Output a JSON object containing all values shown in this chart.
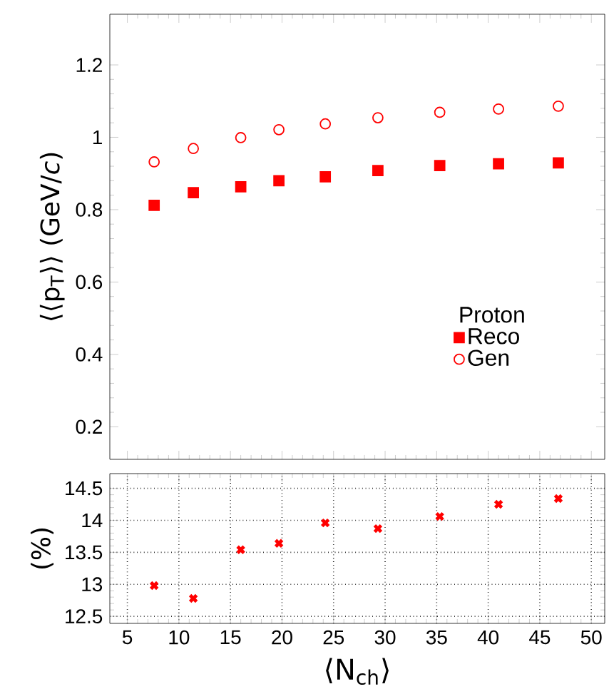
{
  "chart_data": [
    {
      "type": "scatter",
      "ylabel": "⟨⟨p$_{T}$⟩⟩ (GeV/*c*)",
      "legend_title": "Proton",
      "legend": "bottom right",
      "tick_labels": "y",
      "x": [
        7.6,
        11.4,
        16.0,
        19.7,
        24.2,
        29.3,
        35.3,
        41.0,
        46.8
      ],
      "xlim": [
        3.3,
        51.3
      ],
      "xticks": [
        5,
        10,
        15,
        20,
        25,
        30,
        35,
        40,
        45,
        50
      ],
      "ylim": [
        0.11,
        1.34
      ],
      "yticks": [
        0.2,
        0.4,
        0.6,
        0.8,
        1,
        1.2
      ],
      "series": [
        {
          "name": "Reco",
          "color": "#ff0000",
          "marker": "square",
          "values": [
            0.812,
            0.847,
            0.863,
            0.88,
            0.891,
            0.908,
            0.922,
            0.927,
            0.929
          ]
        },
        {
          "name": "Gen",
          "color": "#ff0000",
          "marker": "circle",
          "values": [
            0.932,
            0.969,
            0.999,
            1.021,
            1.037,
            1.054,
            1.069,
            1.078,
            1.086
          ]
        }
      ]
    },
    {
      "type": "scatter",
      "ylabel": "(%)",
      "xlabel": "⟨N$_{ch}$⟩",
      "grid": true,
      "marker": "cross",
      "x": [
        7.6,
        11.4,
        16.0,
        19.7,
        24.2,
        29.3,
        35.3,
        41.0,
        46.8
      ],
      "xlim": [
        3.3,
        51.3
      ],
      "xticks": [
        5,
        10,
        15,
        20,
        25,
        30,
        35,
        40,
        45,
        50
      ],
      "ylim": [
        12.39,
        14.73
      ],
      "yticks": [
        12.5,
        13,
        13.5,
        14,
        14.5
      ],
      "series": [
        {
          "color": "#ff0000",
          "values": [
            12.98,
            12.78,
            13.54,
            13.64,
            13.96,
            13.87,
            14.06,
            14.25,
            14.34
          ]
        }
      ]
    }
  ]
}
